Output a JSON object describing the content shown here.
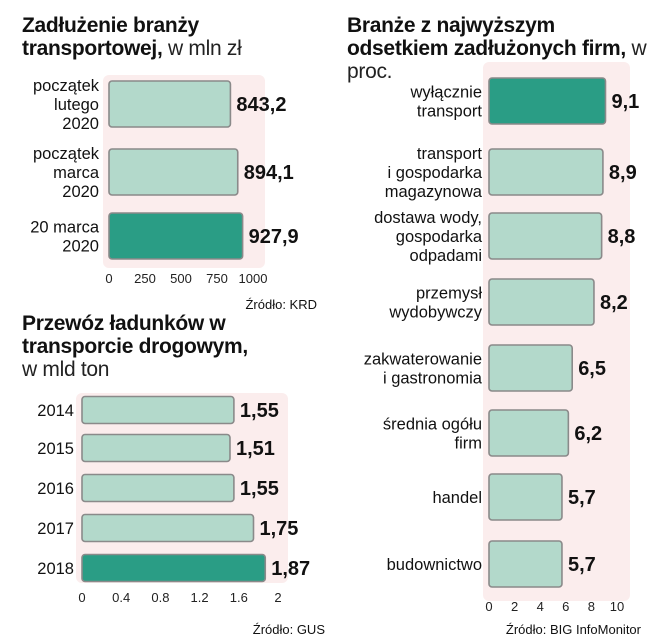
{
  "chart_data": [
    {
      "id": "debt",
      "type": "bar",
      "orientation": "horizontal",
      "title_bold": "Zadłużenie branży transportowej,",
      "title_unit": "w mln zł",
      "categories": [
        [
          "początek",
          "lutego",
          "2020"
        ],
        [
          "początek",
          "marca",
          "2020"
        ],
        [
          "20 marca",
          "2020"
        ]
      ],
      "values": [
        843.2,
        894.1,
        927.9
      ],
      "value_labels": [
        "843,2",
        "894,1",
        "927,9"
      ],
      "highlight_index": 2,
      "ticks": [
        "0",
        "250",
        "500",
        "750",
        "1000"
      ],
      "xlim": [
        0,
        1000
      ],
      "source": "Źródło: KRD"
    },
    {
      "id": "freight",
      "type": "bar",
      "orientation": "horizontal",
      "title_bold": "Przewóz ładunków w transporcie drogowym,",
      "title_unit": "w mld ton",
      "categories": [
        [
          "2014"
        ],
        [
          "2015"
        ],
        [
          "2016"
        ],
        [
          "2017"
        ],
        [
          "2018"
        ]
      ],
      "values": [
        1.55,
        1.51,
        1.55,
        1.75,
        1.87
      ],
      "value_labels": [
        "1,55",
        "1,51",
        "1,55",
        "1,75",
        "1,87"
      ],
      "highlight_index": 4,
      "ticks": [
        "0",
        "0.4",
        "0.8",
        "1.2",
        "1.6",
        "2"
      ],
      "xlim": [
        0,
        2
      ],
      "source": "Źródło: GUS"
    },
    {
      "id": "sectors",
      "type": "bar",
      "orientation": "horizontal",
      "title_bold": "Branże z najwyższym odsetkiem zadłużonych firm,",
      "title_unit": "w proc.",
      "categories": [
        [
          "wyłącznie",
          "transport"
        ],
        [
          "transport",
          "i gospodarka",
          "magazynowa"
        ],
        [
          "dostawa wody,",
          "gospodarka",
          "odpadami"
        ],
        [
          "przemysł",
          "wydobywczy"
        ],
        [
          "zakwaterowanie",
          "i gastronomia"
        ],
        [
          "średnia ogółu",
          "firm"
        ],
        [
          "handel"
        ],
        [
          "budownictwo"
        ]
      ],
      "values": [
        9.1,
        8.9,
        8.8,
        8.2,
        6.5,
        6.2,
        5.7,
        5.7
      ],
      "value_labels": [
        "9,1",
        "8,9",
        "8,8",
        "8,2",
        "6,5",
        "6,2",
        "5,7",
        "5,7"
      ],
      "highlight_index": 0,
      "ticks": [
        "0",
        "2",
        "4",
        "6",
        "8",
        "10"
      ],
      "xlim": [
        0,
        10
      ],
      "source": "Źródło: BIG InfoMonitor"
    }
  ],
  "colors": {
    "bar_light": "#b3d9cb",
    "bar_highlight": "#2a9d85",
    "bar_outline": "#8a8a8a",
    "plot_background": "#fbeded"
  }
}
